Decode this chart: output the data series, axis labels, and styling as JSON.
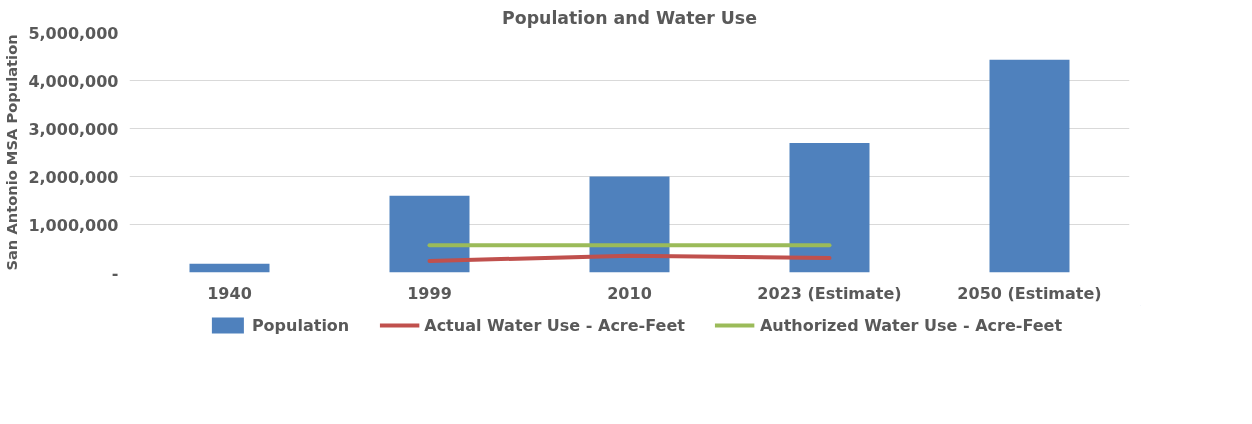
{
  "chart_data": {
    "type": "bar",
    "title": "Population and Water Use",
    "ylabel": "San Antonio MSA Population",
    "categories": [
      "1940",
      "1999",
      "2010",
      "2023 (Estimate)",
      "2050 (Estimate)"
    ],
    "series": [
      {
        "name": "Population",
        "color": "#4f81bd",
        "values": [
          180000,
          1600000,
          2000000,
          2700000,
          4430000
        ]
      },
      {
        "name": "Actual Water Use - Acre-Feet",
        "type": "line",
        "color": "#c0504d",
        "values": [
          null,
          240000,
          350000,
          300000,
          null
        ]
      },
      {
        "name": "Authorized Water Use - Acre-Feet",
        "type": "line",
        "color": "#9bbb59",
        "values": [
          null,
          570000,
          570000,
          570000,
          null
        ]
      }
    ],
    "ylim": [
      0,
      5000000
    ],
    "yticks": [
      {
        "value": 0,
        "label": "-"
      },
      {
        "value": 1000000,
        "label": "1,000,000"
      },
      {
        "value": 2000000,
        "label": "2,000,000"
      },
      {
        "value": 3000000,
        "label": "3,000,000"
      },
      {
        "value": 4000000,
        "label": "4,000,000"
      },
      {
        "value": 5000000,
        "label": "5,000,000"
      }
    ],
    "grid": "y",
    "legend": "bottom"
  }
}
